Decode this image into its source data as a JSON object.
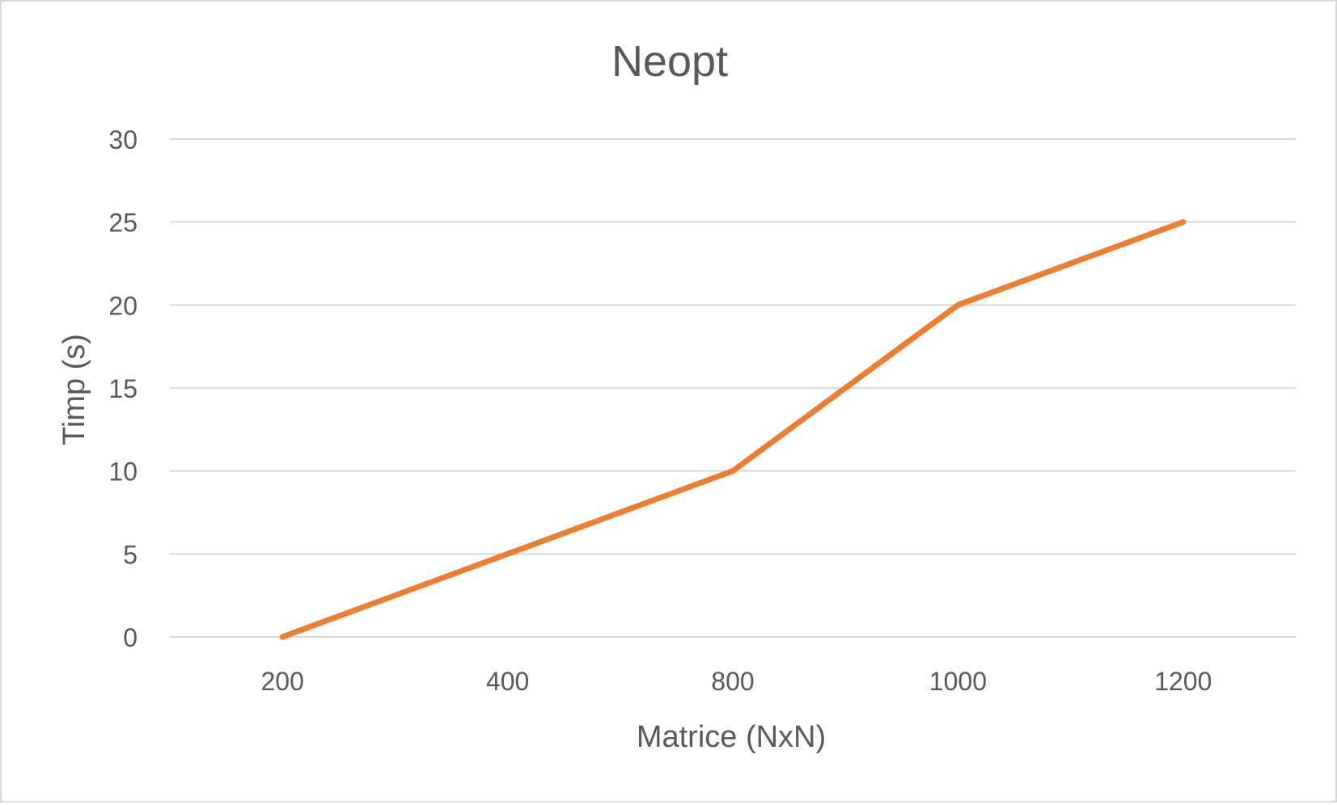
{
  "chart_data": {
    "type": "line",
    "title": "Neopt",
    "xlabel": "Matrice (NxN)",
    "ylabel": "Timp (s)",
    "categories": [
      "200",
      "400",
      "800",
      "1000",
      "1200"
    ],
    "series": [
      {
        "values": [
          0,
          5,
          10,
          20,
          25
        ],
        "color": "#ed7d31"
      }
    ],
    "ylim": [
      0,
      30
    ],
    "yticks": [
      0,
      5,
      10,
      15,
      20,
      25,
      30
    ],
    "grid": true,
    "legend": "none",
    "colors": {
      "gridline": "#d9d9d9",
      "text": "#595959",
      "border": "#d9d9d9"
    }
  }
}
